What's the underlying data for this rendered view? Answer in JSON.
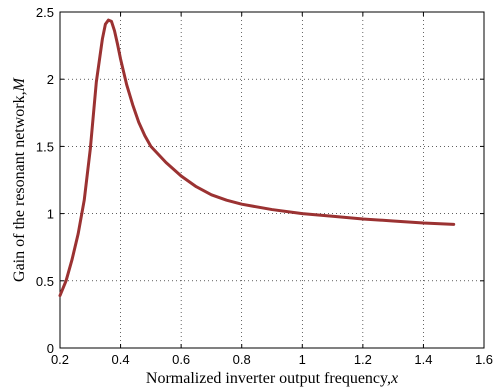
{
  "chart_data": {
    "type": "line",
    "xlabel_text": "Normalized inverter output frequency,",
    "xlabel_var": "x",
    "ylabel_text": "Gain of the resonant network,",
    "ylabel_var": "M",
    "xlim": [
      0.2,
      1.6
    ],
    "ylim": [
      0,
      2.5
    ],
    "grid": true,
    "x_ticks": [
      0.2,
      0.4,
      0.6,
      0.8,
      1,
      1.2,
      1.4,
      1.6
    ],
    "x_tick_labels": [
      "0.2",
      "0.4",
      "0.6",
      "0.8",
      "1",
      "1.2",
      "1.4",
      "1.6"
    ],
    "y_ticks": [
      0,
      0.5,
      1,
      1.5,
      2,
      2.5
    ],
    "y_tick_labels": [
      "0",
      "0.5",
      "1",
      "1.5",
      "2",
      "2.5"
    ],
    "series": [
      {
        "color": "#9b3232",
        "x": [
          0.2,
          0.22,
          0.24,
          0.26,
          0.28,
          0.3,
          0.32,
          0.34,
          0.35,
          0.36,
          0.37,
          0.38,
          0.39,
          0.4,
          0.42,
          0.44,
          0.46,
          0.48,
          0.5,
          0.55,
          0.6,
          0.65,
          0.7,
          0.75,
          0.8,
          0.9,
          1.0,
          1.1,
          1.2,
          1.3,
          1.4,
          1.5
        ],
        "y": [
          0.39,
          0.5,
          0.66,
          0.85,
          1.1,
          1.48,
          1.98,
          2.3,
          2.41,
          2.44,
          2.43,
          2.36,
          2.26,
          2.15,
          1.96,
          1.81,
          1.68,
          1.58,
          1.5,
          1.38,
          1.28,
          1.2,
          1.14,
          1.1,
          1.07,
          1.03,
          1.0,
          0.98,
          0.96,
          0.945,
          0.93,
          0.92
        ]
      }
    ]
  }
}
